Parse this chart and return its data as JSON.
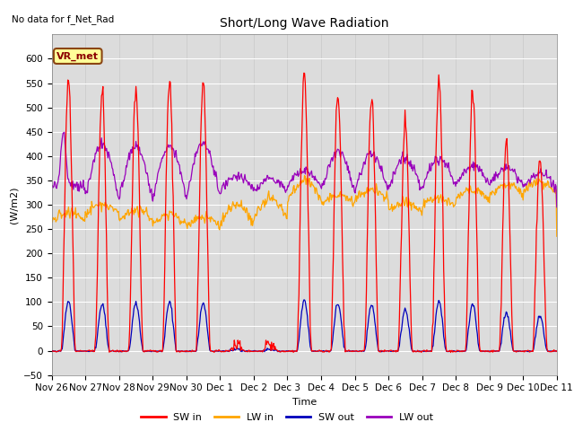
{
  "title": "Short/Long Wave Radiation",
  "xlabel": "Time",
  "ylabel": "(W/m2)",
  "ylim": [
    -50,
    650
  ],
  "yticks": [
    -50,
    0,
    50,
    100,
    150,
    200,
    250,
    300,
    350,
    400,
    450,
    500,
    550,
    600
  ],
  "note": "No data for f_Net_Rad",
  "legend_label": "VR_met",
  "line_colors": {
    "SW_in": "#ff0000",
    "LW_in": "#ffa500",
    "SW_out": "#0000bb",
    "LW_out": "#9900bb"
  },
  "legend_entries": [
    "SW in",
    "LW in",
    "SW out",
    "LW out"
  ],
  "x_tick_labels": [
    "Nov 26",
    "Nov 27",
    "Nov 28",
    "Nov 29",
    "Nov 30",
    "Dec 1",
    "Dec 2",
    "Dec 3",
    "Dec 4",
    "Dec 5",
    "Dec 6",
    "Dec 7",
    "Dec 8",
    "Dec 9",
    "Dec 10",
    "Dec 11"
  ],
  "n_days": 15,
  "fig_width": 6.4,
  "fig_height": 4.8,
  "dpi": 100
}
